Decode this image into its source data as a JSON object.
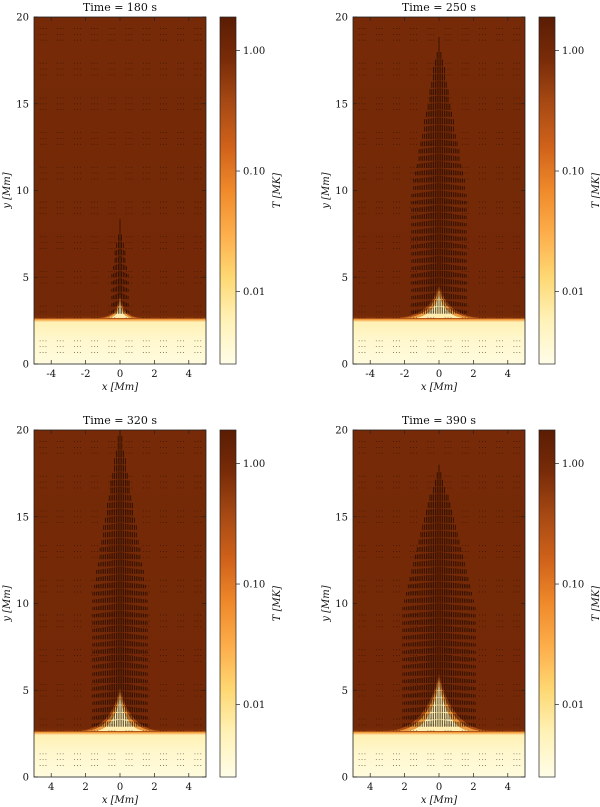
{
  "colorbar": {
    "label": "T [MK]",
    "ticks": [
      {
        "value": 1.0,
        "label": "1.00"
      },
      {
        "value": 0.1,
        "label": "0.10"
      },
      {
        "value": 0.01,
        "label": "0.01"
      }
    ],
    "scale": "log",
    "range": [
      0.0025,
      1.9
    ]
  },
  "colormap_stops": [
    "#fffde8",
    "#fff2b8",
    "#fed873",
    "#fdae4b",
    "#f08a2a",
    "#d0621a",
    "#a84a14",
    "#7a2c08",
    "#5a1c04"
  ],
  "chart_data": [
    {
      "type": "heatmap",
      "title": "Time = 180 s",
      "xlabel": "x [Mm]",
      "ylabel": "y [Mm]",
      "xlim": [
        -5,
        5
      ],
      "ylim": [
        0,
        20
      ],
      "xticks": [
        -4,
        -2,
        0,
        2,
        4
      ],
      "yticks": [
        0,
        5,
        10,
        15,
        20
      ],
      "corona_temperature_MK": 1.0,
      "chromosphere_temperature_MK": 0.004,
      "transition_height_Mm": 2.6,
      "jet": {
        "peak_height_Mm": 3.8,
        "half_width_Mm": 0.45,
        "velocity_column_top_Mm": 8.0
      }
    },
    {
      "type": "heatmap",
      "title": "Time = 250 s",
      "xlabel": "x [Mm]",
      "ylabel": "y [Mm]",
      "xlim": [
        -5,
        5
      ],
      "ylim": [
        0,
        20
      ],
      "xticks": [
        -4,
        -2,
        0,
        2,
        4
      ],
      "yticks": [
        0,
        5,
        10,
        15,
        20
      ],
      "corona_temperature_MK": 1.0,
      "chromosphere_temperature_MK": 0.004,
      "transition_height_Mm": 2.6,
      "jet": {
        "peak_height_Mm": 4.3,
        "half_width_Mm": 1.5,
        "velocity_column_top_Mm": 18.5
      }
    },
    {
      "type": "heatmap",
      "title": "Time = 320 s",
      "xlabel": "x [Mm]",
      "ylabel": "y [Mm]",
      "xlim": [
        -5,
        5
      ],
      "ylim": [
        0,
        20
      ],
      "xticks": [
        -4,
        -2,
        0,
        2,
        4
      ],
      "xtick_labels": [
        "4",
        "2",
        "0",
        "2",
        "4"
      ],
      "yticks": [
        0,
        5,
        10,
        15,
        20
      ],
      "corona_temperature_MK": 1.0,
      "chromosphere_temperature_MK": 0.004,
      "transition_height_Mm": 2.6,
      "jet": {
        "peak_height_Mm": 4.9,
        "half_width_Mm": 1.5,
        "velocity_column_top_Mm": 20.0
      }
    },
    {
      "type": "heatmap",
      "title": "Time = 390 s",
      "xlabel": "x [Mm]",
      "ylabel": "y [Mm]",
      "xlim": [
        -5,
        5
      ],
      "ylim": [
        0,
        20
      ],
      "xticks": [
        -4,
        -2,
        0,
        2,
        4
      ],
      "xtick_labels": [
        "4",
        "2",
        "0",
        "2",
        "4"
      ],
      "yticks": [
        0,
        5,
        10,
        15,
        20
      ],
      "corona_temperature_MK": 1.0,
      "chromosphere_temperature_MK": 0.004,
      "transition_height_Mm": 2.6,
      "jet": {
        "peak_height_Mm": 5.7,
        "half_width_Mm": 2.0,
        "velocity_column_top_Mm": 18.0
      }
    }
  ]
}
